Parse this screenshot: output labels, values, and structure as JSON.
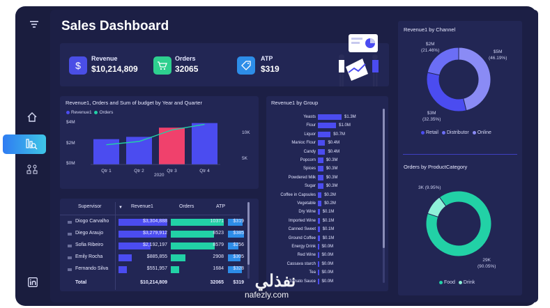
{
  "dashboard": {
    "title": "Sales Dashboard"
  },
  "sidebar": {
    "icons": [
      "filter-icon",
      "home-icon",
      "analytics-icon",
      "hierarchy-icon",
      "linkedin-icon"
    ]
  },
  "kpis": [
    {
      "label": "Revenue",
      "value": "$10,214,809",
      "icon": "dollar-icon",
      "color": "#4a4ee6"
    },
    {
      "label": "Orders",
      "value": "32065",
      "icon": "cart-icon",
      "color": "#2ed08f"
    },
    {
      "label": "ATP",
      "value": "$319",
      "icon": "tag-icon",
      "color": "#2d8de8"
    }
  ],
  "combo": {
    "title": "Revenue1, Orders and Sum of budget by Year and Quarter",
    "legend": [
      "Revenue1",
      "Orders"
    ],
    "y_left_ticks": [
      "$4M",
      "$2M",
      "$0M"
    ],
    "y_right_ticks": [
      "10K",
      "5K"
    ],
    "year": "2020"
  },
  "group_chart": {
    "title": "Revenue1 by Group"
  },
  "channel_chart": {
    "title": "Revenue1 by Channel",
    "labels": [
      {
        "text": "$2M",
        "sub": "(21.46%)"
      },
      {
        "text": "$5M",
        "sub": "(46.19%)"
      },
      {
        "text": "$3M",
        "sub": "(32.35%)"
      }
    ],
    "legend": [
      "Retail",
      "Distributor",
      "Online"
    ]
  },
  "category_chart": {
    "title": "Orders by ProductCategory",
    "labels": [
      {
        "text": "3K (9.95%)"
      },
      {
        "text": "29K",
        "sub": "(90.05%)"
      }
    ],
    "legend": [
      "Food",
      "Drink"
    ]
  },
  "table": {
    "headers": [
      "Supervisor",
      "Revenue1",
      "Orders",
      "ATP"
    ],
    "rows": [
      {
        "name": "Diogo Carvalho",
        "revenue": "$3,304,888",
        "orders": "10371",
        "atp": "$319",
        "rev_frac": 1.0,
        "ord_frac": 1.0,
        "atp_frac": 0.92
      },
      {
        "name": "Diego Araujo",
        "revenue": "$3,279,912",
        "orders": "8523",
        "atp": "$385",
        "rev_frac": 0.99,
        "ord_frac": 0.82,
        "atp_frac": 1.0
      },
      {
        "name": "Sofia Ribeiro",
        "revenue": "$2,192,197",
        "orders": "8579",
        "atp": "$256",
        "rev_frac": 0.66,
        "ord_frac": 0.83,
        "atp_frac": 0.66
      },
      {
        "name": "Emily Rocha",
        "revenue": "$885,855",
        "orders": "2908",
        "atp": "$305",
        "rev_frac": 0.27,
        "ord_frac": 0.28,
        "atp_frac": 0.79
      },
      {
        "name": "Fernando Silva",
        "revenue": "$551,957",
        "orders": "1684",
        "atp": "$328",
        "rev_frac": 0.17,
        "ord_frac": 0.16,
        "atp_frac": 0.85
      }
    ],
    "total": {
      "label": "Total",
      "revenue": "$10,214,809",
      "orders": "32065",
      "atp": "$319"
    }
  },
  "watermark": {
    "arabic": "نفذلي",
    "latin": "nafezly.com"
  },
  "chart_data": [
    {
      "type": "bar",
      "title": "Revenue1, Orders and Sum of budget by Year and Quarter",
      "categories": [
        "Qtr 1",
        "Qtr 2",
        "Qtr 3",
        "Qtr 4"
      ],
      "series": [
        {
          "name": "Revenue1",
          "values": [
            2.2,
            2.4,
            3.2,
            3.6
          ],
          "color": "#4b4cf0",
          "highlight_index": 2,
          "highlight_color": "#f0416c"
        },
        {
          "name": "Orders",
          "values": [
            6000,
            7000,
            10500,
            12200
          ],
          "type": "line",
          "color": "#22d1a6"
        }
      ],
      "ylim": [
        0,
        4
      ],
      "ylim_right": [
        0,
        14000
      ],
      "xlabel": "2020",
      "legend": "top-left",
      "grid": false
    },
    {
      "type": "bar",
      "title": "Revenue1 by Group",
      "orientation": "horizontal",
      "categories": [
        "Yeasts",
        "Flour",
        "Liquor",
        "Manioc Flour",
        "Candy",
        "Popcorn",
        "Spices",
        "Powdered Milk",
        "Sugar",
        "Coffee in Capsules",
        "Vegetable",
        "Dry Wine",
        "Imported Wine",
        "Canned Sweet",
        "Ground Coffee",
        "Energy Drink",
        "Red Wine",
        "Cassava starch",
        "Tea",
        "Tomato Sauce"
      ],
      "values": [
        1.3,
        1.0,
        0.7,
        0.4,
        0.4,
        0.3,
        0.3,
        0.3,
        0.3,
        0.2,
        0.2,
        0.1,
        0.1,
        0.1,
        0.1,
        0.0,
        0.0,
        0.0,
        0.0,
        0.0
      ],
      "labels": [
        "$1.3M",
        "$1.0M",
        "$0.7M",
        "$0.4M",
        "$0.4M",
        "$0.3M",
        "$0.3M",
        "$0.3M",
        "$0.3M",
        "$0.2M",
        "$0.2M",
        "$0.1M",
        "$0.1M",
        "$0.1M",
        "$0.1M",
        "$0.0M",
        "$0.0M",
        "$0.0M",
        "$0.0M",
        "$0.0M"
      ],
      "color": "#4b4cf0"
    },
    {
      "type": "pie",
      "title": "Revenue1 by Channel",
      "donut": true,
      "categories": [
        "Retail",
        "Distributor",
        "Online"
      ],
      "values": [
        32.35,
        21.46,
        46.19
      ],
      "colors": [
        "#4b4cf0",
        "#6b6ef5",
        "#8a8bf5"
      ]
    },
    {
      "type": "pie",
      "title": "Orders by ProductCategory",
      "donut": true,
      "categories": [
        "Food",
        "Drink"
      ],
      "values": [
        90.05,
        9.95
      ],
      "colors": [
        "#22d1a6",
        "#8ff0d8"
      ]
    }
  ]
}
